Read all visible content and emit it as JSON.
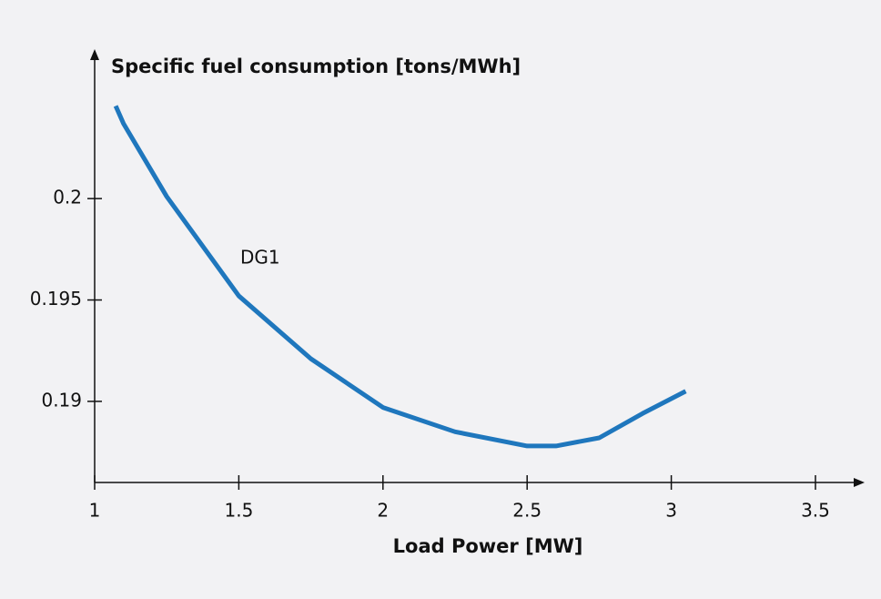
{
  "chart_data": {
    "type": "line",
    "y_label": "Specific fuel consumption [tons/MWh]",
    "x_label": "Load Power [MW]",
    "x": [
      1.073,
      1.1,
      1.25,
      1.5,
      1.75,
      2,
      2.25,
      2.5,
      2.6,
      2.75,
      2.9,
      3.05
    ],
    "series": [
      {
        "name": "DG1",
        "color": "#1f77bd",
        "values": [
          0.20457,
          0.2037,
          0.2001,
          0.1952,
          0.1921,
          0.1897,
          0.1885,
          0.1878,
          0.1878,
          0.1882,
          0.1894,
          0.1905
        ]
      }
    ],
    "xlim": [
      1,
      3.65
    ],
    "ylim": [
      0.186,
      0.2071
    ],
    "xticks": [
      1,
      1.5,
      2,
      2.5,
      3,
      3.5
    ],
    "yticks": [
      0.19,
      0.195,
      0.2
    ],
    "grid": false
  }
}
